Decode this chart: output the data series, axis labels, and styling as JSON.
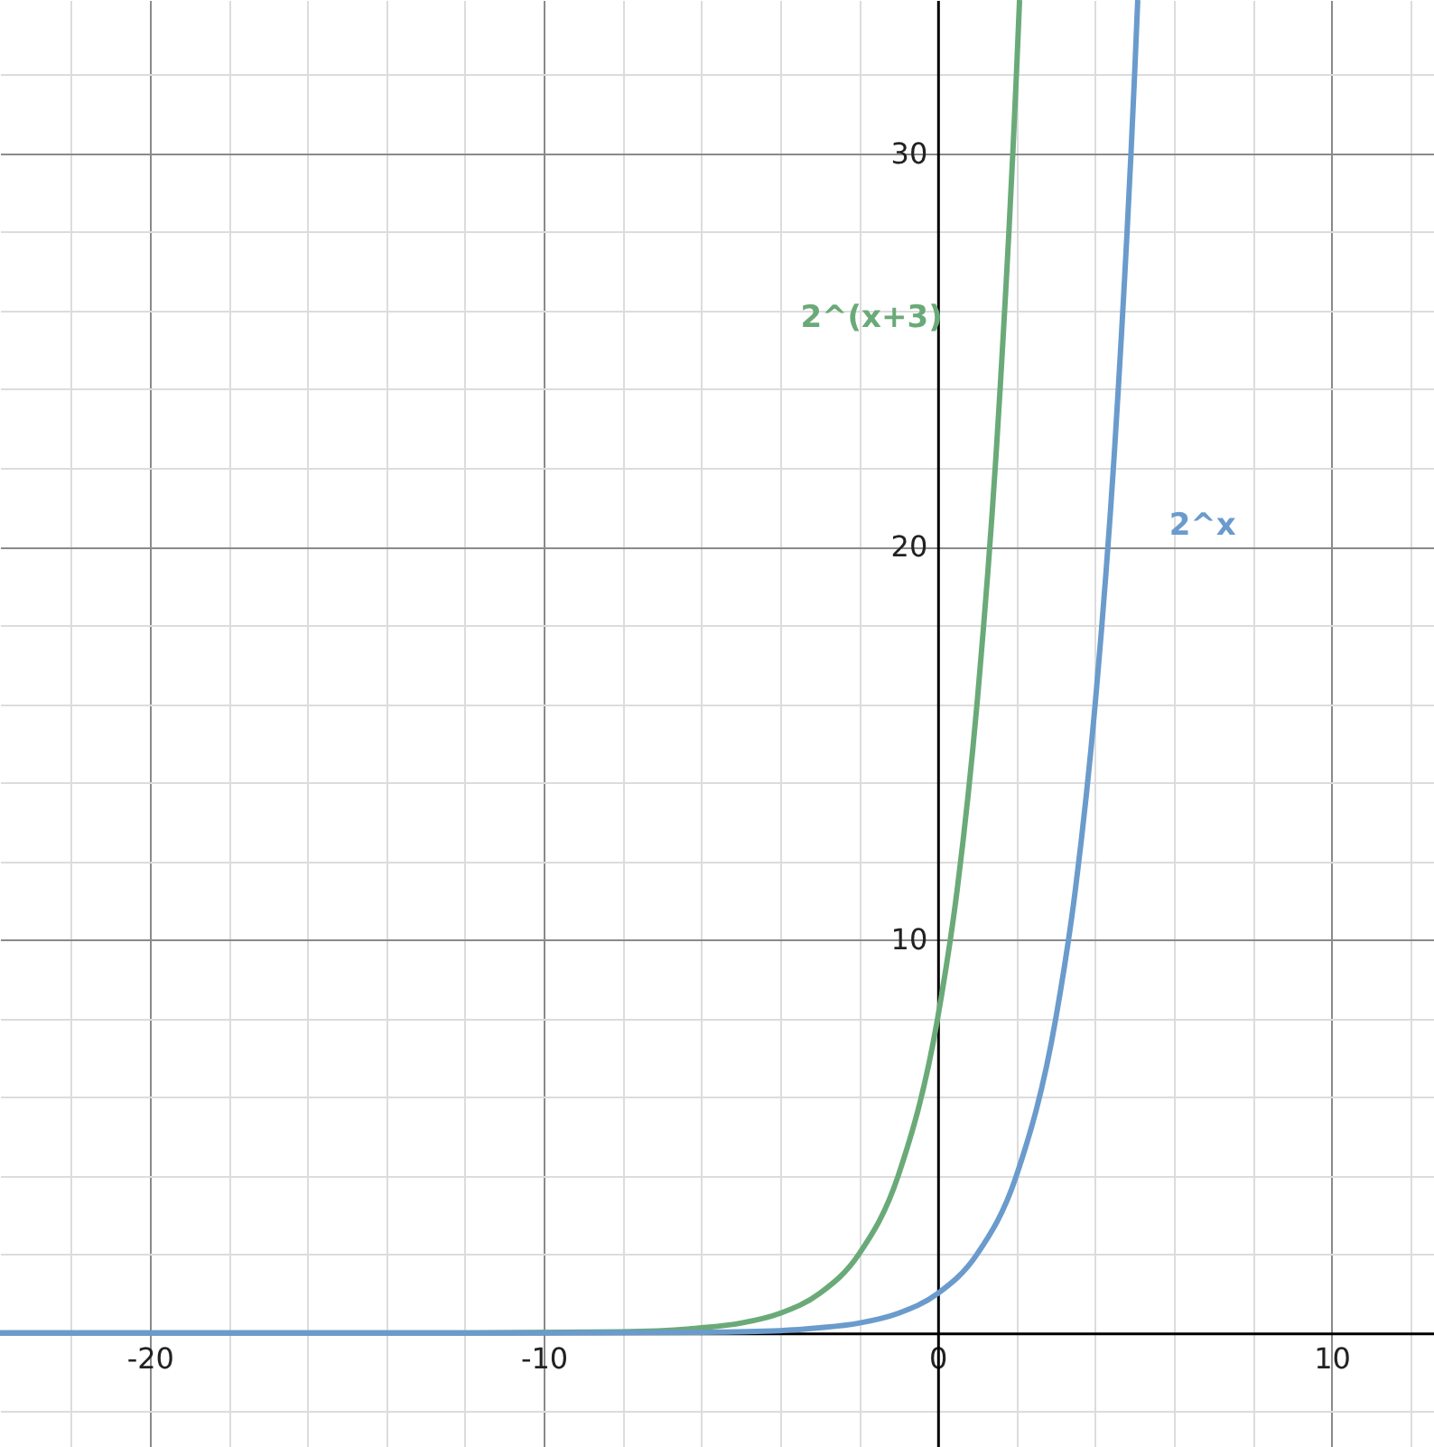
{
  "chart_data": {
    "type": "line",
    "xlim": [
      -23.8,
      12.6
    ],
    "ylim": [
      -2.9,
      33.9
    ],
    "xticks": [
      {
        "value": -22,
        "label": null
      },
      -20,
      {
        "value": -18,
        "label": null
      },
      {
        "value": -16,
        "label": null
      },
      {
        "value": -14,
        "label": null
      },
      {
        "value": -12,
        "label": null
      },
      -10,
      {
        "value": -8,
        "label": null
      },
      {
        "value": -6,
        "label": null
      },
      {
        "value": -4,
        "label": null
      },
      {
        "value": -2,
        "label": null
      },
      0,
      {
        "value": 2,
        "label": null
      },
      {
        "value": 4,
        "label": null
      },
      {
        "value": 6,
        "label": null
      },
      {
        "value": 8,
        "label": null
      },
      10,
      {
        "value": 12,
        "label": null
      }
    ],
    "yticks": [
      {
        "value": -2,
        "label": null
      },
      {
        "value": 0,
        "label": null
      },
      {
        "value": 2,
        "label": null
      },
      {
        "value": 4,
        "label": null
      },
      {
        "value": 6,
        "label": null
      },
      {
        "value": 8,
        "label": null
      },
      10,
      {
        "value": 12,
        "label": null
      },
      {
        "value": 14,
        "label": null
      },
      {
        "value": 16,
        "label": null
      },
      {
        "value": 18,
        "label": null
      },
      20,
      {
        "value": 22,
        "label": null
      },
      {
        "value": 24,
        "label": null
      },
      {
        "value": 26,
        "label": null
      },
      {
        "value": 28,
        "label": null
      },
      30,
      {
        "value": 32,
        "label": null
      }
    ],
    "grid": true,
    "line_style": "solid",
    "marker": "none",
    "series": [
      {
        "name": "2^(x+3)",
        "color": "#6aaa78",
        "x": [
          -23.8,
          -12,
          -8,
          -6,
          -5,
          -4,
          -3,
          -2,
          -1,
          0,
          0.5,
          1,
          1.5,
          2,
          2.08
        ],
        "values": [
          0,
          0,
          0.03,
          0.13,
          0.25,
          0.5,
          1,
          2,
          4,
          8,
          11.3,
          16,
          22.6,
          32,
          33.9
        ]
      },
      {
        "name": "2^x",
        "color": "#6a9bcc",
        "x": [
          -23.8,
          -10,
          -6,
          -4,
          -3,
          -2,
          -1,
          0,
          1,
          2,
          3,
          3.5,
          4,
          4.5,
          5,
          5.08
        ],
        "values": [
          0,
          0,
          0.02,
          0.06,
          0.13,
          0.25,
          0.5,
          1,
          2,
          4,
          8,
          11.3,
          16,
          22.6,
          32,
          33.9
        ]
      }
    ]
  }
}
